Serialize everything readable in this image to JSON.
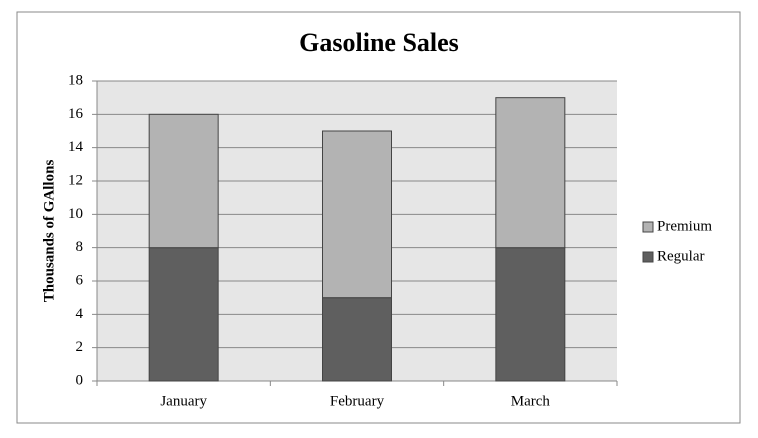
{
  "chart_data": {
    "type": "stacked_bar",
    "title": "Gasoline Sales",
    "y_label": "Thousands of GAllons",
    "categories": [
      "January",
      "February",
      "March"
    ],
    "series": [
      {
        "name": "Regular",
        "color": "#5f5f5f",
        "values": [
          8,
          5,
          8
        ]
      },
      {
        "name": "Premium",
        "color": "#b3b3b3",
        "values": [
          8,
          10,
          9
        ]
      }
    ],
    "ylim": [
      0,
      18
    ],
    "yticks": [
      0,
      2,
      4,
      6,
      8,
      10,
      12,
      14,
      16,
      18
    ],
    "grid": true,
    "legend": "right"
  }
}
